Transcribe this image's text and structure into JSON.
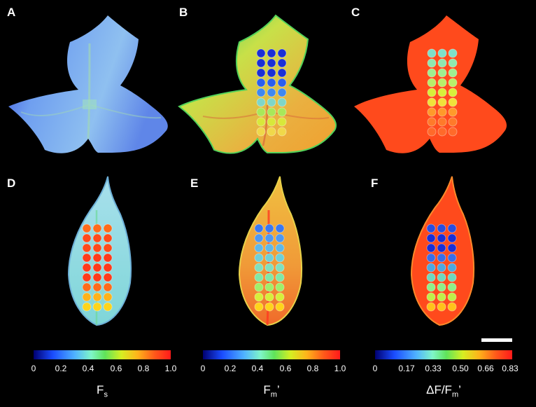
{
  "panels": {
    "a": {
      "label": "A"
    },
    "b": {
      "label": "B"
    },
    "c": {
      "label": "C"
    },
    "d": {
      "label": "D"
    },
    "e": {
      "label": "E"
    },
    "f": {
      "label": "F"
    }
  },
  "colorbars": [
    {
      "ticks": [
        "0",
        "0.2",
        "0.4",
        "0.6",
        "0.8",
        "1.0"
      ],
      "title_main": "F",
      "title_sub": "s",
      "title_suffix": ""
    },
    {
      "ticks": [
        "0",
        "0.2",
        "0.4",
        "0.6",
        "0.8",
        "1.0"
      ],
      "title_main": "F",
      "title_sub": "m",
      "title_suffix": "’"
    },
    {
      "ticks": [
        "0",
        "0.17",
        "0.33",
        "0.50",
        "0.66",
        "0.83"
      ],
      "title_main": "ΔF/F",
      "title_sub": "m",
      "title_suffix": "’"
    }
  ],
  "colormap": [
    "#0a0a8a",
    "#1a4cff",
    "#4fb2ff",
    "#7ff5c8",
    "#5fe35a",
    "#d6ef22",
    "#ffb21a",
    "#ff5a1a",
    "#ff1a1a"
  ],
  "leaf_colors": {
    "a": {
      "fill": "#7eaef0",
      "edge": "#3b5ee0",
      "vein": "#9fd6b8"
    },
    "b": {
      "fill": "#dfc64a",
      "edge": "#52d25a",
      "vein": "#d8663a"
    },
    "c": {
      "fill": "#ff4a1c",
      "edge": "#ff4a1c",
      "vein": "#ff5a22"
    },
    "d": {
      "fill": "#8fd2e6",
      "edge": "#6db0d8",
      "vein": "#6fd89a"
    },
    "e": {
      "fill": "#f0a43a",
      "edge": "#e8d24a",
      "vein": "#ff3a20"
    },
    "f": {
      "fill": "#ff4a1c",
      "edge": "#ff8a2a",
      "vein": "#ff6a28"
    }
  },
  "dot_colors": {
    "b": [
      "#1a2fd6",
      "#1a2fd6",
      "#1a2fd6",
      "#2a5ef0",
      "#3f88f0",
      "#7fd6c8",
      "#a8e85a",
      "#d8e83a",
      "#f0d84a"
    ],
    "c": [
      "#7fe0c8",
      "#8fe8b0",
      "#9fef90",
      "#b8ef6a",
      "#d8ef3a",
      "#f0e23a",
      "#ff9a2a",
      "#ff7a2a",
      "#ff6a2a"
    ],
    "d": [
      "#ff6a1a",
      "#ff4a1a",
      "#ff4a1a",
      "#ff3a1a",
      "#ff3a1a",
      "#ff3a1a",
      "#ff6a1a",
      "#ffb21a",
      "#ffd41a"
    ],
    "e": [
      "#3a78f0",
      "#4f98f0",
      "#5fb8e8",
      "#6fd0d8",
      "#7fe0c0",
      "#7fe8a8",
      "#9fef6a",
      "#d6ef3a",
      "#ffd41a"
    ],
    "f": [
      "#2a4ee0",
      "#1a2fd6",
      "#1a2fd6",
      "#3a6ee8",
      "#4fa8e0",
      "#6fd8c0",
      "#8fef8a",
      "#bfef4a",
      "#ffc21a"
    ]
  }
}
